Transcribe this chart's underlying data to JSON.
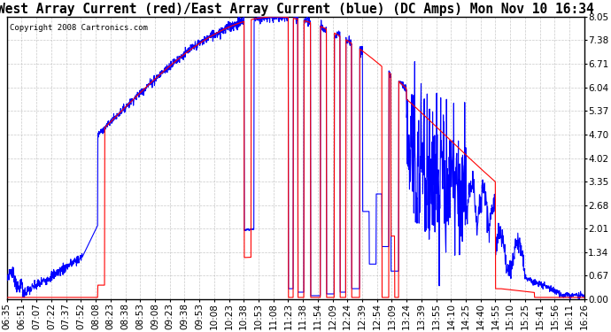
{
  "title": "West Array Current (red)/East Array Current (blue) (DC Amps) Mon Nov 10 16:34",
  "copyright": "Copyright 2008 Cartronics.com",
  "yticks": [
    0.0,
    0.67,
    1.34,
    2.01,
    2.68,
    3.35,
    4.02,
    4.7,
    5.37,
    6.04,
    6.71,
    7.38,
    8.05
  ],
  "ylim": [
    0.0,
    8.05
  ],
  "bg_color": "#ffffff",
  "grid_color": "#bbbbbb",
  "red_color": "#ff0000",
  "blue_color": "#0000ff",
  "title_fontsize": 10.5,
  "tick_fontsize": 7.5,
  "xtick_labels": [
    "06:35",
    "06:51",
    "07:07",
    "07:22",
    "07:37",
    "07:52",
    "08:08",
    "08:23",
    "08:38",
    "08:53",
    "09:08",
    "09:23",
    "09:38",
    "09:53",
    "10:08",
    "10:23",
    "10:38",
    "10:53",
    "11:08",
    "11:23",
    "11:38",
    "11:54",
    "12:09",
    "12:24",
    "12:39",
    "12:54",
    "13:09",
    "13:24",
    "13:39",
    "13:55",
    "14:10",
    "14:25",
    "14:40",
    "14:55",
    "15:10",
    "15:25",
    "15:41",
    "15:56",
    "16:11",
    "16:26"
  ]
}
